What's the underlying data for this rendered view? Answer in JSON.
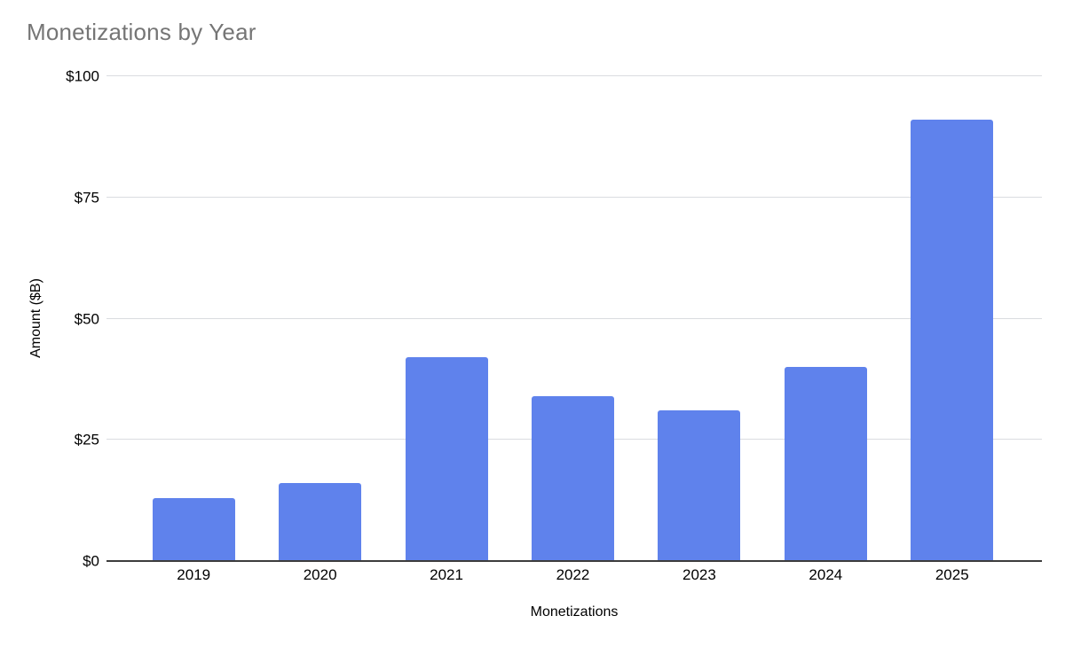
{
  "chart": {
    "title_color": "#757575",
    "gridline_color": "#dadce0",
    "axis_line_color": "#3c3c3c",
    "background": "#ffffff"
  },
  "chart_data": {
    "type": "bar",
    "title": "Monetizations by Year",
    "categories": [
      "2019",
      "2020",
      "2021",
      "2022",
      "2023",
      "2024",
      "2025"
    ],
    "values": [
      13,
      16,
      42,
      34,
      31,
      40,
      91
    ],
    "series_name": "Monetizations",
    "xlabel": "Monetizations",
    "ylabel": "Amount ($B)",
    "ylim": [
      0,
      100
    ],
    "yticks": [
      0,
      25,
      50,
      75,
      100
    ],
    "ytick_labels": [
      "$0",
      "$25",
      "$50",
      "$75",
      "$100"
    ],
    "grid": true,
    "legend": "none",
    "bar_color": "#5f82ec"
  }
}
